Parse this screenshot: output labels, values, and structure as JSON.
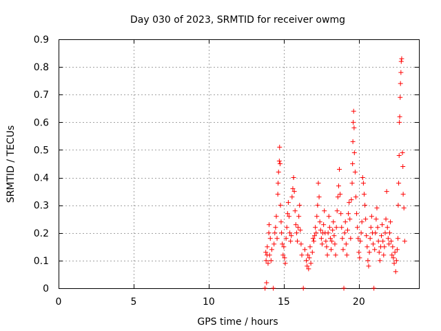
{
  "chart_data": {
    "type": "scatter",
    "title": "Day 030 of 2023, SRMTID for receiver owmg",
    "xlabel": "GPS time / hours",
    "ylabel": "SRMTID / TECUs",
    "xlim": [
      0,
      24
    ],
    "ylim": [
      0,
      0.9
    ],
    "x_ticks": [
      0,
      5,
      10,
      15,
      20
    ],
    "x_tick_labels": [
      "0",
      "5",
      "10",
      "15",
      "20"
    ],
    "y_ticks": [
      0,
      0.1,
      0.2,
      0.3,
      0.4,
      0.5,
      0.6,
      0.7,
      0.8,
      0.9
    ],
    "y_tick_labels": [
      "0",
      "0.1",
      "0.2",
      "0.3",
      "0.4",
      "0.5",
      "0.6",
      "0.7",
      "0.8",
      "0.9"
    ],
    "grid": true,
    "marker": "+",
    "series": [
      {
        "name": "owmg",
        "color": "#ff0000",
        "points": [
          [
            13.75,
            0.0
          ],
          [
            13.8,
            0.13
          ],
          [
            13.82,
            0.1
          ],
          [
            13.85,
            0.02
          ],
          [
            13.88,
            0.12
          ],
          [
            13.9,
            0.15
          ],
          [
            13.95,
            0.09
          ],
          [
            14.0,
            0.2
          ],
          [
            14.02,
            0.23
          ],
          [
            14.05,
            0.12
          ],
          [
            14.1,
            0.18
          ],
          [
            14.15,
            0.1
          ],
          [
            14.2,
            0.14
          ],
          [
            14.3,
            0.0
          ],
          [
            14.35,
            0.16
          ],
          [
            14.4,
            0.2
          ],
          [
            14.45,
            0.22
          ],
          [
            14.5,
            0.26
          ],
          [
            14.55,
            0.18
          ],
          [
            14.6,
            0.34
          ],
          [
            14.62,
            0.38
          ],
          [
            14.65,
            0.42
          ],
          [
            14.7,
            0.46
          ],
          [
            14.72,
            0.51
          ],
          [
            14.75,
            0.45
          ],
          [
            14.78,
            0.3
          ],
          [
            14.82,
            0.24
          ],
          [
            14.85,
            0.2
          ],
          [
            14.9,
            0.16
          ],
          [
            14.95,
            0.12
          ],
          [
            15.0,
            0.15
          ],
          [
            15.05,
            0.11
          ],
          [
            15.1,
            0.09
          ],
          [
            15.15,
            0.18
          ],
          [
            15.2,
            0.22
          ],
          [
            15.25,
            0.27
          ],
          [
            15.3,
            0.31
          ],
          [
            15.35,
            0.26
          ],
          [
            15.4,
            0.2
          ],
          [
            15.45,
            0.17
          ],
          [
            15.5,
            0.19
          ],
          [
            15.55,
            0.33
          ],
          [
            15.6,
            0.36
          ],
          [
            15.65,
            0.4
          ],
          [
            15.7,
            0.35
          ],
          [
            15.75,
            0.28
          ],
          [
            15.8,
            0.23
          ],
          [
            15.85,
            0.2
          ],
          [
            15.9,
            0.17
          ],
          [
            15.95,
            0.22
          ],
          [
            16.0,
            0.26
          ],
          [
            16.05,
            0.3
          ],
          [
            16.1,
            0.21
          ],
          [
            16.15,
            0.16
          ],
          [
            16.2,
            0.12
          ],
          [
            16.3,
            0.0
          ],
          [
            16.4,
            0.14
          ],
          [
            16.5,
            0.1
          ],
          [
            16.55,
            0.08
          ],
          [
            16.6,
            0.12
          ],
          [
            16.65,
            0.07
          ],
          [
            16.7,
            0.11
          ],
          [
            16.75,
            0.15
          ],
          [
            16.8,
            0.09
          ],
          [
            16.9,
            0.13
          ],
          [
            16.95,
            0.18
          ],
          [
            17.0,
            0.17
          ],
          [
            17.05,
            0.19
          ],
          [
            17.1,
            0.22
          ],
          [
            17.15,
            0.2
          ],
          [
            17.2,
            0.26
          ],
          [
            17.25,
            0.3
          ],
          [
            17.3,
            0.38
          ],
          [
            17.35,
            0.33
          ],
          [
            17.4,
            0.24
          ],
          [
            17.45,
            0.21
          ],
          [
            17.5,
            0.18
          ],
          [
            17.55,
            0.16
          ],
          [
            17.6,
            0.2
          ],
          [
            17.65,
            0.23
          ],
          [
            17.7,
            0.28
          ],
          [
            17.75,
            0.2
          ],
          [
            17.8,
            0.17
          ],
          [
            17.85,
            0.15
          ],
          [
            17.9,
            0.12
          ],
          [
            17.95,
            0.2
          ],
          [
            18.0,
            0.26
          ],
          [
            18.05,
            0.22
          ],
          [
            18.1,
            0.18
          ],
          [
            18.15,
            0.14
          ],
          [
            18.2,
            0.17
          ],
          [
            18.25,
            0.21
          ],
          [
            18.3,
            0.24
          ],
          [
            18.35,
            0.19
          ],
          [
            18.4,
            0.16
          ],
          [
            18.45,
            0.12
          ],
          [
            18.5,
            0.22
          ],
          [
            18.55,
            0.28
          ],
          [
            18.6,
            0.33
          ],
          [
            18.65,
            0.37
          ],
          [
            18.7,
            0.43
          ],
          [
            18.75,
            0.34
          ],
          [
            18.8,
            0.27
          ],
          [
            18.85,
            0.22
          ],
          [
            18.9,
            0.18
          ],
          [
            18.95,
            0.14
          ],
          [
            19.0,
            0.0
          ],
          [
            19.05,
            0.2
          ],
          [
            19.1,
            0.24
          ],
          [
            19.15,
            0.16
          ],
          [
            19.2,
            0.12
          ],
          [
            19.25,
            0.21
          ],
          [
            19.3,
            0.27
          ],
          [
            19.35,
            0.31
          ],
          [
            19.4,
            0.25
          ],
          [
            19.45,
            0.18
          ],
          [
            19.5,
            0.32
          ],
          [
            19.55,
            0.38
          ],
          [
            19.58,
            0.45
          ],
          [
            19.6,
            0.53
          ],
          [
            19.62,
            0.6
          ],
          [
            19.65,
            0.64
          ],
          [
            19.68,
            0.58
          ],
          [
            19.7,
            0.49
          ],
          [
            19.75,
            0.42
          ],
          [
            19.8,
            0.33
          ],
          [
            19.85,
            0.27
          ],
          [
            19.9,
            0.22
          ],
          [
            19.95,
            0.18
          ],
          [
            20.0,
            0.13
          ],
          [
            20.05,
            0.11
          ],
          [
            20.1,
            0.17
          ],
          [
            20.15,
            0.2
          ],
          [
            20.2,
            0.24
          ],
          [
            20.25,
            0.4
          ],
          [
            20.3,
            0.38
          ],
          [
            20.35,
            0.34
          ],
          [
            20.4,
            0.3
          ],
          [
            20.45,
            0.25
          ],
          [
            20.5,
            0.19
          ],
          [
            20.55,
            0.15
          ],
          [
            20.6,
            0.1
          ],
          [
            20.65,
            0.08
          ],
          [
            20.7,
            0.13
          ],
          [
            20.75,
            0.18
          ],
          [
            20.8,
            0.22
          ],
          [
            20.85,
            0.26
          ],
          [
            20.9,
            0.2
          ],
          [
            20.95,
            0.16
          ],
          [
            21.0,
            0.0
          ],
          [
            21.05,
            0.14
          ],
          [
            21.1,
            0.2
          ],
          [
            21.15,
            0.25
          ],
          [
            21.2,
            0.29
          ],
          [
            21.25,
            0.22
          ],
          [
            21.3,
            0.17
          ],
          [
            21.35,
            0.13
          ],
          [
            21.4,
            0.1
          ],
          [
            21.45,
            0.15
          ],
          [
            21.5,
            0.19
          ],
          [
            21.55,
            0.23
          ],
          [
            21.6,
            0.17
          ],
          [
            21.65,
            0.12
          ],
          [
            21.7,
            0.15
          ],
          [
            21.75,
            0.2
          ],
          [
            21.8,
            0.25
          ],
          [
            21.85,
            0.35
          ],
          [
            21.9,
            0.22
          ],
          [
            21.95,
            0.18
          ],
          [
            22.0,
            0.16
          ],
          [
            22.05,
            0.2
          ],
          [
            22.1,
            0.24
          ],
          [
            22.15,
            0.17
          ],
          [
            22.2,
            0.12
          ],
          [
            22.25,
            0.15
          ],
          [
            22.3,
            0.11
          ],
          [
            22.35,
            0.09
          ],
          [
            22.4,
            0.13
          ],
          [
            22.45,
            0.06
          ],
          [
            22.5,
            0.1
          ],
          [
            22.55,
            0.14
          ],
          [
            22.6,
            0.18
          ],
          [
            22.62,
            0.3
          ],
          [
            22.65,
            0.38
          ],
          [
            22.68,
            0.48
          ],
          [
            22.7,
            0.6
          ],
          [
            22.72,
            0.62
          ],
          [
            22.75,
            0.69
          ],
          [
            22.77,
            0.74
          ],
          [
            22.8,
            0.78
          ],
          [
            22.82,
            0.82
          ],
          [
            22.85,
            0.83
          ],
          [
            22.9,
            0.49
          ],
          [
            22.93,
            0.44
          ],
          [
            22.95,
            0.34
          ],
          [
            23.0,
            0.29
          ],
          [
            23.05,
            0.17
          ]
        ]
      }
    ]
  }
}
